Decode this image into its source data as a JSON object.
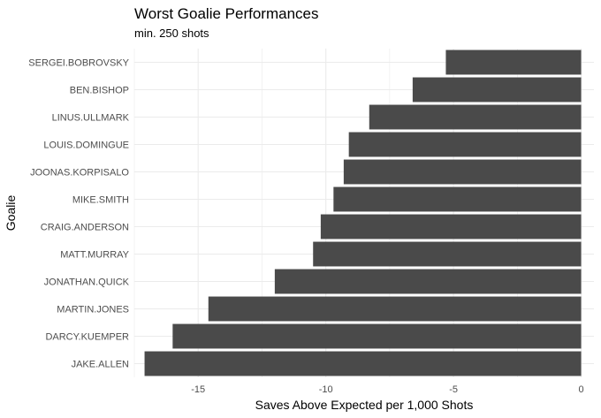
{
  "chart_data": {
    "type": "bar",
    "orientation": "horizontal",
    "title": "Worst Goalie Performances",
    "subtitle": "min. 250 shots",
    "xlabel": "Saves Above Expected per 1,000 Shots",
    "ylabel": "Goalie",
    "xlim": [
      -17.5,
      0.5
    ],
    "x_ticks": [
      -15,
      -10,
      -5,
      0
    ],
    "x_tick_labels": [
      "-15",
      "-10",
      "-5",
      "0"
    ],
    "grid": true,
    "bar_color": "#4a4a4a",
    "grid_color": "#ebebeb",
    "categories": [
      "SERGEI.BOBROVSKY",
      "BEN.BISHOP",
      "LINUS.ULLMARK",
      "LOUIS.DOMINGUE",
      "JOONAS.KORPISALO",
      "MIKE.SMITH",
      "CRAIG.ANDERSON",
      "MATT.MURRAY",
      "JONATHAN.QUICK",
      "MARTIN.JONES",
      "DARCY.KUEMPER",
      "JAKE.ALLEN"
    ],
    "values": [
      -5.3,
      -6.6,
      -8.3,
      -9.1,
      -9.3,
      -9.7,
      -10.2,
      -10.5,
      -12.0,
      -14.6,
      -16.0,
      -17.1
    ]
  }
}
